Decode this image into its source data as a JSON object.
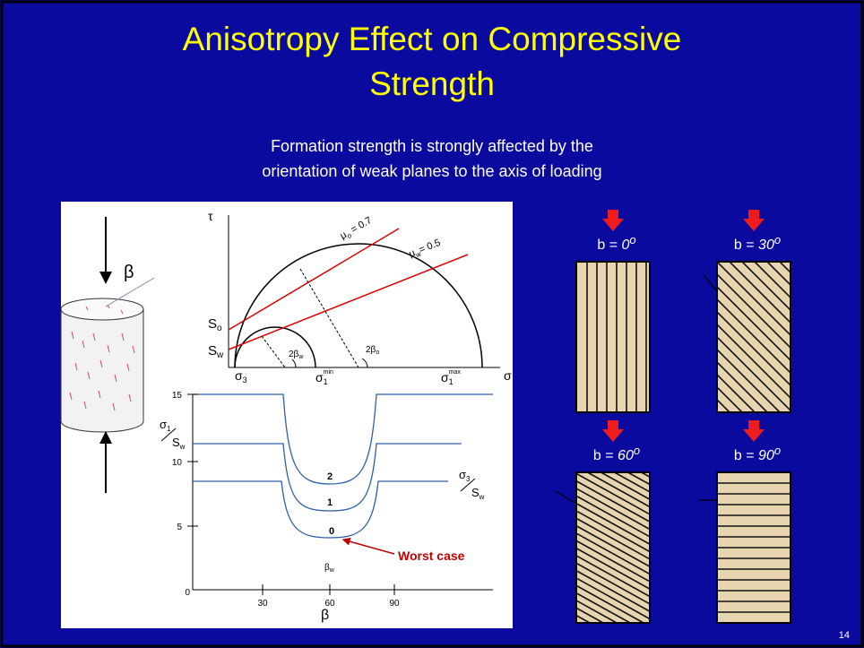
{
  "slide": {
    "title": [
      "Anisotropy Effect on Compressive",
      "Strength"
    ],
    "subtitle": [
      "Formation strength is strongly affected by the",
      "orientation of weak planes to the axis of loading"
    ],
    "page_number": "14"
  },
  "figure": {
    "tau": "τ",
    "sigma": "σ",
    "beta_load": "β",
    "mu_o": {
      "sym": "μ",
      "sub": "o",
      "eq": " = 0.7"
    },
    "mu_w": {
      "sym": "μ",
      "sub": "w",
      "eq": "= 0.5"
    },
    "s_o": {
      "sym": "S",
      "sub": "o"
    },
    "s_w": {
      "sym": "S",
      "sub": "w"
    },
    "two_beta_w": {
      "sym": "2β",
      "sub": "w"
    },
    "two_beta_o": {
      "sym": "2β",
      "sub": "o"
    },
    "sigma_3": {
      "sym": "σ",
      "sub": "3"
    },
    "sigma_1_min": {
      "sym": "σ",
      "sub": "1",
      "sup": "min"
    },
    "sigma_1_max": {
      "sym": "σ",
      "sub": "1",
      "sup": "max"
    },
    "yticks": [
      15,
      10,
      5,
      0
    ],
    "xticks": [
      30,
      60,
      90
    ],
    "x_label": "β",
    "beta_w": {
      "sym": "β",
      "sub": "w"
    },
    "curve_labels": [
      "2",
      "1",
      "0"
    ],
    "y_label": {
      "num": "σ",
      "num_sub": "1",
      "den": "S",
      "den_sub": "w"
    },
    "ratio_label": {
      "num": "σ",
      "num_sub": "3",
      "den": "S",
      "den_sub": "w"
    },
    "annotation": "Worst case"
  },
  "panels": [
    {
      "prefix": "b = ",
      "angle": "0",
      "degree": "o"
    },
    {
      "prefix": "b = ",
      "angle": "30",
      "degree": "o"
    },
    {
      "prefix": "b = ",
      "angle": "60",
      "degree": "o"
    },
    {
      "prefix": "b = ",
      "angle": "90",
      "degree": "o"
    }
  ]
}
